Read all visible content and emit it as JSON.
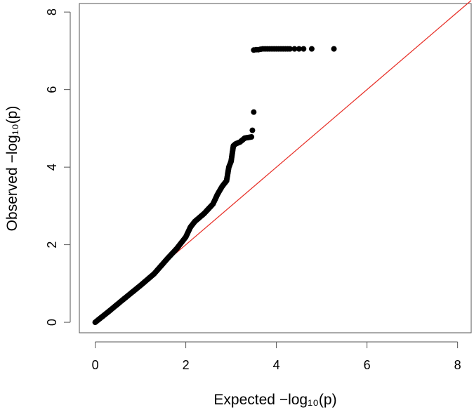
{
  "chart_data": {
    "type": "scatter",
    "xlabel": "Expected −log₁₀(p)",
    "ylabel": "Observed −log₁₀(p)",
    "xlim": [
      -0.35,
      8.3
    ],
    "ylim": [
      -0.27,
      8.22
    ],
    "xticks": [
      0,
      2,
      4,
      6,
      8
    ],
    "yticks": [
      0,
      2,
      4,
      6,
      8
    ],
    "grid": false,
    "reference_line": {
      "from": [
        0,
        0
      ],
      "to": [
        8.3,
        8.3
      ],
      "color": "#e8322a"
    },
    "point_color": "#000000",
    "curve": [
      [
        0.0,
        0.0
      ],
      [
        0.3,
        0.28
      ],
      [
        0.6,
        0.57
      ],
      [
        1.0,
        0.95
      ],
      [
        1.3,
        1.25
      ],
      [
        1.6,
        1.65
      ],
      [
        1.8,
        1.9
      ],
      [
        2.0,
        2.2
      ],
      [
        2.1,
        2.45
      ],
      [
        2.2,
        2.6
      ],
      [
        2.4,
        2.8
      ],
      [
        2.6,
        3.05
      ],
      [
        2.7,
        3.3
      ],
      [
        2.8,
        3.5
      ],
      [
        2.9,
        3.65
      ],
      [
        2.95,
        4.0
      ],
      [
        3.0,
        4.15
      ],
      [
        3.05,
        4.55
      ],
      [
        3.1,
        4.6
      ],
      [
        3.2,
        4.65
      ],
      [
        3.3,
        4.75
      ],
      [
        3.45,
        4.78
      ]
    ],
    "extra_points": [
      {
        "x": 3.47,
        "y": 4.95
      },
      {
        "x": 3.5,
        "y": 5.42
      }
    ],
    "top_cluster": [
      {
        "x": 3.5,
        "y": 7.02
      },
      {
        "x": 3.55,
        "y": 7.03
      },
      {
        "x": 3.6,
        "y": 7.03
      },
      {
        "x": 3.65,
        "y": 7.04
      },
      {
        "x": 3.7,
        "y": 7.05
      },
      {
        "x": 3.75,
        "y": 7.05
      },
      {
        "x": 3.8,
        "y": 7.05
      },
      {
        "x": 3.85,
        "y": 7.05
      },
      {
        "x": 3.9,
        "y": 7.05
      },
      {
        "x": 3.95,
        "y": 7.05
      },
      {
        "x": 4.0,
        "y": 7.05
      },
      {
        "x": 4.05,
        "y": 7.05
      },
      {
        "x": 4.1,
        "y": 7.05
      },
      {
        "x": 4.15,
        "y": 7.05
      },
      {
        "x": 4.2,
        "y": 7.05
      },
      {
        "x": 4.25,
        "y": 7.05
      },
      {
        "x": 4.3,
        "y": 7.05
      },
      {
        "x": 4.4,
        "y": 7.05
      },
      {
        "x": 4.5,
        "y": 7.05
      },
      {
        "x": 4.6,
        "y": 7.05
      },
      {
        "x": 4.78,
        "y": 7.05
      },
      {
        "x": 5.27,
        "y": 7.05
      }
    ]
  }
}
